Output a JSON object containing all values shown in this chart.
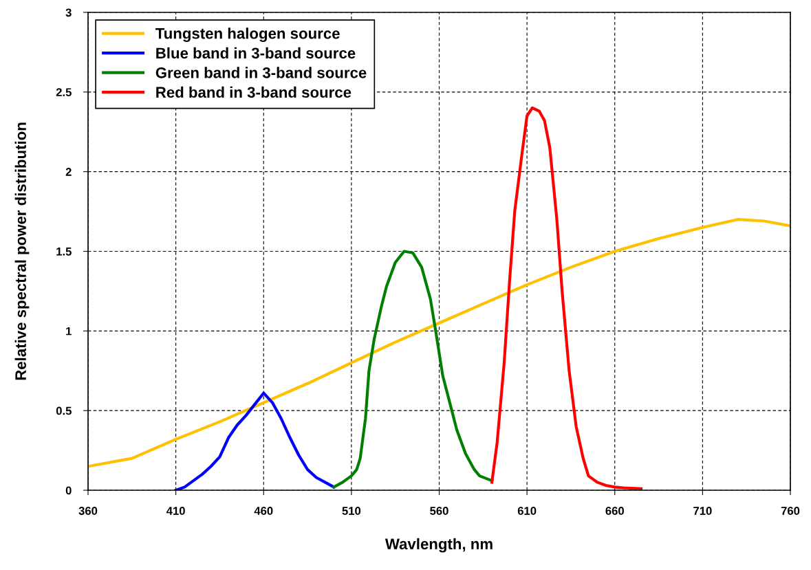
{
  "chart_data": {
    "type": "line",
    "xlabel": "Wavlength, nm",
    "ylabel": "Relative spectral power distribution",
    "xlim": [
      360,
      760
    ],
    "xticks": [
      360,
      410,
      460,
      510,
      560,
      610,
      660,
      710,
      760
    ],
    "ylim": [
      0,
      3
    ],
    "yticks": [
      0,
      0.5,
      1,
      1.5,
      2,
      2.5,
      3
    ],
    "grid": true,
    "legend": "top left",
    "marker": "none",
    "line_style": "solid",
    "series": [
      {
        "name": "Tungsten halogen source",
        "color": "#ffc000",
        "x": [
          360,
          385,
          410,
          435,
          460,
          485,
          510,
          535,
          560,
          585,
          610,
          635,
          660,
          685,
          710,
          730,
          745,
          760
        ],
        "values": [
          0.15,
          0.2,
          0.32,
          0.43,
          0.55,
          0.67,
          0.8,
          0.93,
          1.05,
          1.17,
          1.29,
          1.4,
          1.5,
          1.58,
          1.65,
          1.7,
          1.69,
          1.66
        ]
      },
      {
        "name": "Blue band in 3-band source",
        "color": "#0000ff",
        "x": [
          410,
          415,
          420,
          425,
          430,
          435,
          440,
          445,
          450,
          455,
          460,
          465,
          470,
          475,
          480,
          485,
          490,
          495,
          500
        ],
        "values": [
          0,
          0.02,
          0.06,
          0.1,
          0.15,
          0.21,
          0.33,
          0.41,
          0.47,
          0.54,
          0.61,
          0.55,
          0.45,
          0.33,
          0.22,
          0.13,
          0.08,
          0.05,
          0.02
        ]
      },
      {
        "name": "Green band in 3-band source",
        "color": "#008000",
        "x": [
          500,
          505,
          510,
          513,
          515,
          518,
          520,
          523,
          527,
          530,
          535,
          540,
          545,
          550,
          555,
          558,
          562,
          566,
          570,
          575,
          580,
          583,
          590
        ],
        "values": [
          0.02,
          0.05,
          0.09,
          0.13,
          0.2,
          0.45,
          0.75,
          0.95,
          1.15,
          1.28,
          1.43,
          1.5,
          1.49,
          1.4,
          1.2,
          1.0,
          0.72,
          0.55,
          0.38,
          0.23,
          0.13,
          0.09,
          0.06
        ]
      },
      {
        "name": "Red band in 3-band source",
        "color": "#ff0000",
        "x": [
          590,
          593,
          597,
          600,
          603,
          607,
          610,
          613,
          617,
          620,
          623,
          627,
          630,
          634,
          638,
          642,
          645,
          650,
          655,
          660,
          665,
          675
        ],
        "values": [
          0.05,
          0.3,
          0.8,
          1.3,
          1.75,
          2.1,
          2.35,
          2.4,
          2.38,
          2.32,
          2.15,
          1.7,
          1.25,
          0.75,
          0.4,
          0.2,
          0.09,
          0.05,
          0.03,
          0.02,
          0.015,
          0.01
        ]
      }
    ]
  }
}
